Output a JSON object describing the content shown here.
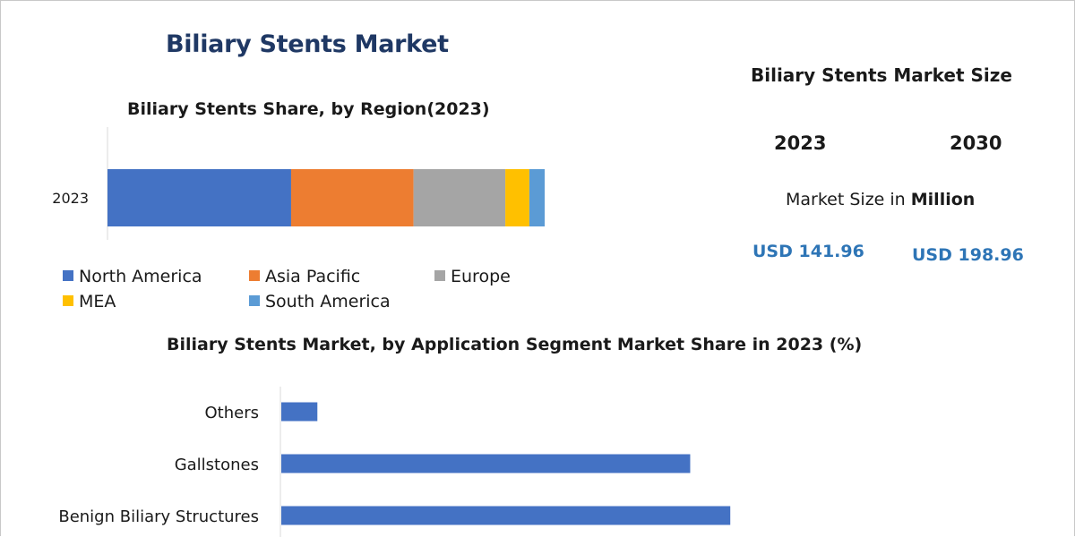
{
  "title": "Biliary Stents Market",
  "market_size": {
    "title": "Biliary Stents Market Size",
    "year_a": "2023",
    "year_b": "2030",
    "unit_prefix": "Market Size in ",
    "unit_bold": "Million",
    "value_a": "USD 141.96",
    "value_b": "USD 198.96"
  },
  "colors": {
    "north_america": "#4472c4",
    "asia_pacific": "#ed7d31",
    "europe": "#a5a5a5",
    "mea": "#ffc000",
    "south_america": "#5b9bd5",
    "application_bar": "#4472c4",
    "title_blue": "#1f3864",
    "value_blue": "#2e75b6"
  },
  "chart_data": [
    {
      "type": "bar",
      "orientation": "horizontal",
      "stacked": true,
      "title": "Biliary Stents Share, by Region(2023)",
      "categories": [
        "2023"
      ],
      "xlim": [
        0,
        100
      ],
      "legend_position": "bottom",
      "series": [
        {
          "name": "North America",
          "values": [
            42
          ],
          "color": "#4472c4"
        },
        {
          "name": "Asia Pacific",
          "values": [
            28
          ],
          "color": "#ed7d31"
        },
        {
          "name": "Europe",
          "values": [
            21
          ],
          "color": "#a5a5a5"
        },
        {
          "name": "MEA",
          "values": [
            5.5
          ],
          "color": "#ffc000"
        },
        {
          "name": "South America",
          "values": [
            3.5
          ],
          "color": "#5b9bd5"
        }
      ]
    },
    {
      "type": "bar",
      "orientation": "horizontal",
      "title": "Biliary Stents Market, by Application Segment Market Share in 2023 (%)",
      "categories": [
        "Others",
        "Gallstones",
        "Benign Biliary Structures"
      ],
      "values": [
        4.5,
        51,
        56
      ],
      "xlim": [
        0,
        100
      ],
      "color": "#4472c4"
    }
  ]
}
